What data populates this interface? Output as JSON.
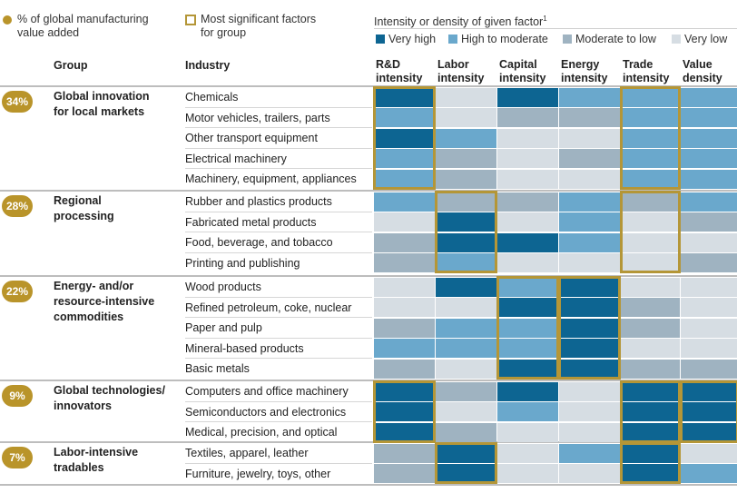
{
  "legend": {
    "value_added_label": "% of global manufacturing value added",
    "value_added_line1": "% of global manufacturing",
    "value_added_line2": "value added",
    "significant_line1": "Most significant factors",
    "significant_line2": "for group",
    "intensity_title": "Intensity or density of given factor",
    "intensity_footnote": "1",
    "levels": [
      {
        "label": "Very high",
        "color": "#0d6592"
      },
      {
        "label": "High to moderate",
        "color": "#6aa8cc"
      },
      {
        "label": "Moderate to low",
        "color": "#9fb3c1"
      },
      {
        "label": "Very low",
        "color": "#d6dde3"
      }
    ]
  },
  "colors": {
    "badge": "#b9942a",
    "highlight_border": "#b49637"
  },
  "chart_data": {
    "type": "heatmap",
    "row_header_group": "Group",
    "row_header_industry": "Industry",
    "columns": [
      {
        "line1": "R&D",
        "line2": "intensity"
      },
      {
        "line1": "Labor",
        "line2": "intensity"
      },
      {
        "line1": "Capital",
        "line2": "intensity"
      },
      {
        "line1": "Energy",
        "line2": "intensity"
      },
      {
        "line1": "Trade",
        "line2": "intensity"
      },
      {
        "line1": "Value",
        "line2": "density"
      }
    ],
    "scale": [
      "Very high",
      "High to moderate",
      "Moderate to low",
      "Very low"
    ],
    "groups": [
      {
        "name_line1": "Global innovation",
        "name_line2": "for local markets",
        "name_line3": "",
        "share": "34%",
        "highlighted": [
          "R&D intensity",
          "Trade intensity"
        ],
        "industries": [
          {
            "name": "Chemicals",
            "levels": [
              "Very high",
              "Very low",
              "Very high",
              "High to moderate",
              "High to moderate",
              "High to moderate"
            ]
          },
          {
            "name": "Motor vehicles, trailers, parts",
            "levels": [
              "High to moderate",
              "Very low",
              "Moderate to low",
              "Moderate to low",
              "High to moderate",
              "High to moderate"
            ]
          },
          {
            "name": "Other transport equipment",
            "levels": [
              "Very high",
              "High to moderate",
              "Very low",
              "Very low",
              "High to moderate",
              "High to moderate"
            ]
          },
          {
            "name": "Electrical machinery",
            "levels": [
              "High to moderate",
              "Moderate to low",
              "Very low",
              "Moderate to low",
              "High to moderate",
              "High to moderate"
            ]
          },
          {
            "name": "Machinery, equipment, appliances",
            "levels": [
              "High to moderate",
              "Moderate to low",
              "Very low",
              "Very low",
              "High to moderate",
              "High to moderate"
            ]
          }
        ]
      },
      {
        "name_line1": "Regional",
        "name_line2": "processing",
        "name_line3": "",
        "share": "28%",
        "highlighted": [
          "Labor intensity",
          "Trade intensity"
        ],
        "industries": [
          {
            "name": "Rubber and plastics products",
            "levels": [
              "High to moderate",
              "Moderate to low",
              "Moderate to low",
              "High to moderate",
              "Moderate to low",
              "High to moderate"
            ]
          },
          {
            "name": "Fabricated metal products",
            "levels": [
              "Very low",
              "Very high",
              "Very low",
              "High to moderate",
              "Very low",
              "Moderate to low"
            ]
          },
          {
            "name": "Food, beverage, and tobacco",
            "levels": [
              "Moderate to low",
              "Very high",
              "Very high",
              "High to moderate",
              "Very low",
              "Very low"
            ]
          },
          {
            "name": "Printing and publishing",
            "levels": [
              "Moderate to low",
              "High to moderate",
              "Very low",
              "Very low",
              "Very low",
              "Moderate to low"
            ]
          }
        ]
      },
      {
        "name_line1": "Energy- and/or",
        "name_line2": "resource-intensive",
        "name_line3": "commodities",
        "share": "22%",
        "highlighted": [
          "Capital intensity",
          "Energy intensity"
        ],
        "industries": [
          {
            "name": "Wood products",
            "levels": [
              "Very low",
              "Very high",
              "High to moderate",
              "Very high",
              "Very low",
              "Very low"
            ]
          },
          {
            "name": "Refined petroleum, coke, nuclear",
            "levels": [
              "Very low",
              "Very low",
              "Very high",
              "Very high",
              "Moderate to low",
              "Very low"
            ]
          },
          {
            "name": "Paper and pulp",
            "levels": [
              "Moderate to low",
              "High to moderate",
              "High to moderate",
              "Very high",
              "Moderate to low",
              "Very low"
            ]
          },
          {
            "name": "Mineral-based products",
            "levels": [
              "High to moderate",
              "High to moderate",
              "High to moderate",
              "Very high",
              "Very low",
              "Very low"
            ]
          },
          {
            "name": "Basic metals",
            "levels": [
              "Moderate to low",
              "Very low",
              "Very high",
              "Very high",
              "Moderate to low",
              "Moderate to low"
            ]
          }
        ]
      },
      {
        "name_line1": "Global technologies/",
        "name_line2": "innovators",
        "name_line3": "",
        "share": "9%",
        "highlighted": [
          "R&D intensity",
          "Trade intensity",
          "Value density"
        ],
        "industries": [
          {
            "name": "Computers and office machinery",
            "levels": [
              "Very high",
              "Moderate to low",
              "Very high",
              "Very low",
              "Very high",
              "Very high"
            ]
          },
          {
            "name": "Semiconductors and electronics",
            "levels": [
              "Very high",
              "Very low",
              "High to moderate",
              "Very low",
              "Very high",
              "Very high"
            ]
          },
          {
            "name": "Medical, precision, and optical",
            "levels": [
              "Very high",
              "Moderate to low",
              "Very low",
              "Very low",
              "Very high",
              "Very high"
            ]
          }
        ]
      },
      {
        "name_line1": "Labor-intensive",
        "name_line2": "tradables",
        "name_line3": "",
        "share": "7%",
        "highlighted": [
          "Labor intensity",
          "Trade intensity"
        ],
        "industries": [
          {
            "name": "Textiles, apparel, leather",
            "levels": [
              "Moderate to low",
              "Very high",
              "Very low",
              "High to moderate",
              "Very high",
              "Very low"
            ]
          },
          {
            "name": "Furniture, jewelry, toys, other",
            "levels": [
              "Moderate to low",
              "Very high",
              "Very low",
              "Very low",
              "Very high",
              "High to moderate"
            ]
          }
        ]
      }
    ]
  }
}
